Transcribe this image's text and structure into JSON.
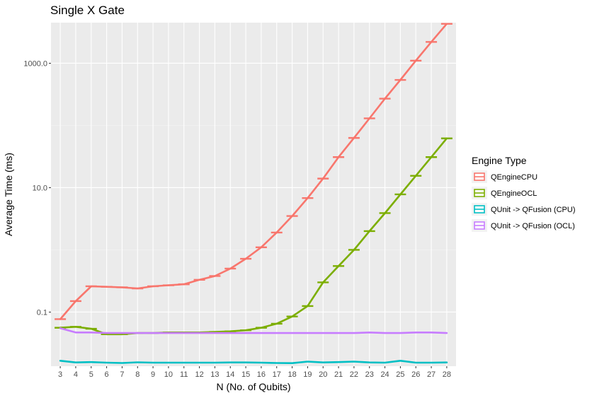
{
  "chart_data": {
    "type": "line",
    "title": "Single X Gate",
    "xlabel": "N (No. of Qubits)",
    "ylabel": "Average Time (ms)",
    "y_scale": "log10",
    "ylim": [
      0.0135,
      4500
    ],
    "y_ticks": [
      {
        "value": 0.1,
        "label": "0.1"
      },
      {
        "value": 10,
        "label": "10.0"
      },
      {
        "value": 1000,
        "label": "1000.0"
      }
    ],
    "x": [
      3,
      4,
      5,
      6,
      7,
      8,
      9,
      10,
      11,
      12,
      13,
      14,
      15,
      16,
      17,
      18,
      19,
      20,
      21,
      22,
      23,
      24,
      25,
      26,
      27,
      28
    ],
    "x_labels": [
      "3",
      "4",
      "5",
      "6",
      "7",
      "8",
      "9",
      "10",
      "11",
      "12",
      "13",
      "14",
      "15",
      "16",
      "17",
      "18",
      "19",
      "20",
      "21",
      "22",
      "23",
      "24",
      "25",
      "26",
      "27",
      "28"
    ],
    "grid": true,
    "legend_title": "Engine Type",
    "legend_position": "right",
    "series": [
      {
        "name": "QEngineCPU",
        "color": "#F8766D",
        "values": [
          0.077,
          0.15,
          0.26,
          0.255,
          0.25,
          0.24,
          0.26,
          0.27,
          0.28,
          0.33,
          0.38,
          0.5,
          0.72,
          1.1,
          1.9,
          3.5,
          6.8,
          14,
          31,
          63,
          130,
          270,
          540,
          1100,
          2200,
          4300
        ],
        "error_bars": true
      },
      {
        "name": "QEngineOCL",
        "color": "#7CAE00",
        "values": [
          0.056,
          0.058,
          0.054,
          0.044,
          0.044,
          0.046,
          0.046,
          0.047,
          0.047,
          0.047,
          0.048,
          0.049,
          0.051,
          0.056,
          0.065,
          0.085,
          0.125,
          0.3,
          0.55,
          1.0,
          2.0,
          3.9,
          7.8,
          15.5,
          31,
          62
        ],
        "error_bars": true
      },
      {
        "name": "QUnit -> QFusion (CPU)",
        "color": "#00BFC4",
        "values": [
          0.0165,
          0.0155,
          0.0157,
          0.0154,
          0.0152,
          0.0156,
          0.0154,
          0.0154,
          0.0154,
          0.0154,
          0.0154,
          0.0155,
          0.0155,
          0.0154,
          0.0152,
          0.0151,
          0.016,
          0.0155,
          0.0157,
          0.016,
          0.0155,
          0.0154,
          0.0165,
          0.0154,
          0.0154,
          0.0155
        ],
        "error_bars": false
      },
      {
        "name": "QUnit -> QFusion (OCL)",
        "color": "#C77CFF",
        "values": [
          0.055,
          0.047,
          0.047,
          0.046,
          0.046,
          0.046,
          0.046,
          0.046,
          0.046,
          0.046,
          0.046,
          0.046,
          0.046,
          0.046,
          0.046,
          0.046,
          0.046,
          0.046,
          0.046,
          0.046,
          0.047,
          0.046,
          0.046,
          0.047,
          0.047,
          0.046
        ],
        "error_bars": false
      }
    ]
  }
}
